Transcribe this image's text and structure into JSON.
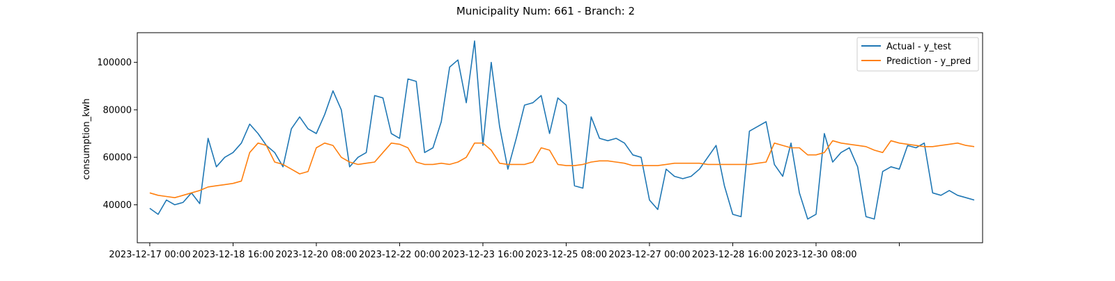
{
  "chart_data": {
    "type": "line",
    "title": "Municipality Num: 661 - Branch: 2",
    "xlabel": "",
    "ylabel": "consumption_kwh",
    "x_ticks": [
      "2023-12-17 00:00",
      "2023-12-18 16:00",
      "2023-12-20 08:00",
      "2023-12-22 00:00",
      "2023-12-23 16:00",
      "2023-12-25 08:00",
      "2023-12-27 00:00",
      "2023-12-28 16:00",
      "2023-12-30 08:00",
      ""
    ],
    "y_ticks": [
      40000,
      60000,
      80000,
      100000
    ],
    "ylim": [
      24000,
      112500
    ],
    "x_range_hours": [
      -6,
      400
    ],
    "grid": false,
    "legend_position": "top-right",
    "series": [
      {
        "name": "Actual - y_test",
        "color": "#1f77b4",
        "x": [
          0,
          4,
          8,
          12,
          16,
          20,
          24,
          28,
          32,
          36,
          40,
          44,
          48,
          52,
          56,
          60,
          64,
          68,
          72,
          76,
          80,
          84,
          88,
          92,
          96,
          100,
          104,
          108,
          112,
          116,
          120,
          124,
          128,
          132,
          136,
          140,
          144,
          148,
          152,
          156,
          160,
          164,
          168,
          172,
          176,
          180,
          184,
          188,
          192,
          196,
          200,
          204,
          208,
          212,
          216,
          220,
          224,
          228,
          232,
          236,
          240,
          244,
          248,
          252,
          256,
          260,
          264,
          268,
          272,
          276,
          280,
          284,
          288,
          292,
          296,
          300,
          304,
          308,
          312,
          316,
          320,
          324,
          328,
          332,
          336,
          340,
          344,
          348,
          352,
          356,
          360,
          364,
          368,
          372,
          376,
          380,
          384,
          388,
          392,
          396
        ],
        "y": [
          38500,
          36000,
          42000,
          40000,
          41000,
          45000,
          40500,
          68000,
          56000,
          60000,
          62000,
          66000,
          74000,
          70000,
          65000,
          62000,
          56000,
          72000,
          77000,
          72000,
          70000,
          78000,
          88000,
          80000,
          56000,
          60000,
          62000,
          86000,
          85000,
          70000,
          68000,
          93000,
          92000,
          62000,
          64000,
          75000,
          98000,
          101000,
          83000,
          109000,
          65000,
          100000,
          73000,
          55000,
          68000,
          82000,
          83000,
          86000,
          70000,
          85000,
          82000,
          48000,
          47000,
          77000,
          68000,
          67000,
          68000,
          66000,
          61000,
          60000,
          42000,
          38000,
          55000,
          52000,
          51000,
          52000,
          55000,
          60000,
          65000,
          48000,
          36000,
          35000,
          71000,
          73000,
          75000,
          57000,
          52000,
          66000,
          45000,
          34000,
          36000,
          70000,
          58000,
          62000,
          64000,
          56000,
          35000,
          34000,
          54000,
          56000,
          55000,
          65000,
          64000,
          66000,
          45000,
          44000,
          46000,
          44000,
          43000,
          42000
        ]
      },
      {
        "name": "Prediction - y_pred",
        "color": "#ff7f0e",
        "x": [
          0,
          4,
          8,
          12,
          16,
          20,
          24,
          28,
          32,
          36,
          40,
          44,
          48,
          52,
          56,
          60,
          64,
          68,
          72,
          76,
          80,
          84,
          88,
          92,
          96,
          100,
          104,
          108,
          112,
          116,
          120,
          124,
          128,
          132,
          136,
          140,
          144,
          148,
          152,
          156,
          160,
          164,
          168,
          172,
          176,
          180,
          184,
          188,
          192,
          196,
          200,
          204,
          208,
          212,
          216,
          220,
          224,
          228,
          232,
          236,
          240,
          244,
          248,
          252,
          256,
          260,
          264,
          268,
          272,
          276,
          280,
          284,
          288,
          292,
          296,
          300,
          304,
          308,
          312,
          316,
          320,
          324,
          328,
          332,
          336,
          340,
          344,
          348,
          352,
          356,
          360,
          364,
          368,
          372,
          376,
          380,
          384,
          388,
          392,
          396
        ],
        "y": [
          45000,
          44000,
          43500,
          43000,
          44000,
          45000,
          46000,
          47500,
          48000,
          48500,
          49000,
          50000,
          62000,
          66000,
          65000,
          58000,
          57000,
          55000,
          53000,
          54000,
          64000,
          66000,
          65000,
          60000,
          58000,
          57000,
          57500,
          58000,
          62000,
          66000,
          65500,
          64000,
          58000,
          57000,
          57000,
          57500,
          57000,
          58000,
          60000,
          66000,
          66000,
          63000,
          57500,
          57000,
          57000,
          57000,
          58000,
          64000,
          63000,
          57000,
          56500,
          56500,
          57000,
          58000,
          58500,
          58500,
          58000,
          57500,
          56500,
          56500,
          56500,
          56500,
          57000,
          57500,
          57500,
          57500,
          57500,
          57000,
          57000,
          57000,
          57000,
          57000,
          57000,
          57500,
          58000,
          66000,
          65000,
          64000,
          64000,
          61000,
          61000,
          62000,
          67000,
          66000,
          65500,
          65000,
          64500,
          63000,
          62000,
          67000,
          66000,
          65500,
          65000,
          64500,
          64500,
          65000,
          65500,
          66000,
          65000,
          64500
        ]
      }
    ]
  }
}
